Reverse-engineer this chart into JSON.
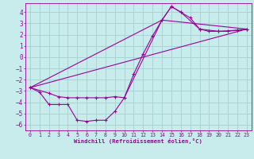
{
  "xlabel": "Windchill (Refroidissement éolien,°C)",
  "background_color": "#c8ecec",
  "grid_color": "#aad4d4",
  "line_color": "#990099",
  "spine_color": "#555555",
  "xlim": [
    -0.5,
    23.5
  ],
  "ylim": [
    -6.5,
    4.8
  ],
  "yticks": [
    -6,
    -5,
    -4,
    -3,
    -2,
    -1,
    0,
    1,
    2,
    3,
    4
  ],
  "xticks": [
    0,
    1,
    2,
    3,
    4,
    5,
    6,
    7,
    8,
    9,
    10,
    11,
    12,
    13,
    14,
    15,
    16,
    17,
    18,
    19,
    20,
    21,
    22,
    23
  ],
  "series1_x": [
    0,
    1,
    2,
    3,
    4,
    5,
    6,
    7,
    8,
    9,
    10,
    11,
    12,
    13,
    14,
    15,
    16,
    17,
    18,
    19,
    20,
    21,
    22,
    23
  ],
  "series1_y": [
    -2.7,
    -3.1,
    -4.2,
    -4.2,
    -4.2,
    -5.6,
    -5.7,
    -5.6,
    -5.6,
    -4.8,
    -3.6,
    -1.5,
    0.3,
    1.9,
    3.3,
    4.5,
    4.0,
    3.5,
    2.5,
    2.3,
    2.3,
    2.3,
    2.4,
    2.5
  ],
  "series2_x": [
    0,
    2,
    3,
    4,
    5,
    6,
    7,
    8,
    9,
    10,
    14,
    15,
    16,
    18,
    20,
    22,
    23
  ],
  "series2_y": [
    -2.7,
    -3.2,
    -3.5,
    -3.6,
    -3.6,
    -3.6,
    -3.6,
    -3.6,
    -3.5,
    -3.6,
    3.3,
    4.5,
    4.0,
    2.5,
    2.3,
    2.4,
    2.5
  ],
  "series3_x": [
    0,
    23
  ],
  "series3_y": [
    -2.7,
    2.5
  ],
  "series4_x": [
    0,
    14,
    23
  ],
  "series4_y": [
    -2.7,
    3.3,
    2.5
  ]
}
